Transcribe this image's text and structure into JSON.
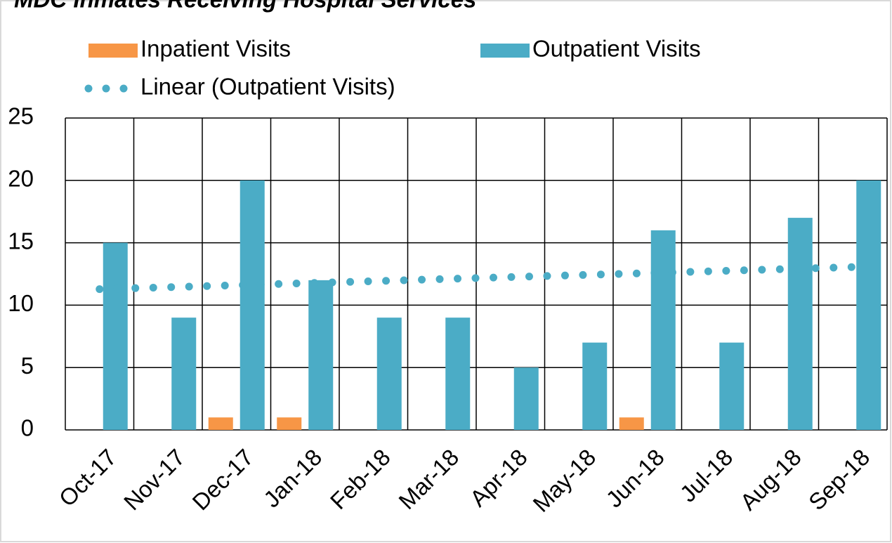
{
  "chart_data": {
    "type": "bar",
    "title": "MDC Inmates Receiving Hospital Services",
    "categories": [
      "Oct-17",
      "Nov-17",
      "Dec-17",
      "Jan-18",
      "Feb-18",
      "Mar-18",
      "Apr-18",
      "May-18",
      "Jun-18",
      "Jul-18",
      "Aug-18",
      "Sep-18"
    ],
    "series": [
      {
        "name": "Inpatient Visits",
        "color": "#f79646",
        "values": [
          0,
          0,
          1,
          1,
          0,
          0,
          0,
          0,
          1,
          0,
          0,
          0
        ]
      },
      {
        "name": "Outpatient Visits",
        "color": "#4bacc6",
        "values": [
          15,
          9,
          20,
          12,
          9,
          9,
          5,
          7,
          16,
          7,
          17,
          20
        ]
      },
      {
        "name": "Linear (Outpatient Visits)",
        "color": "#4bacc6",
        "type": "trend",
        "values": [
          11.28,
          11.44,
          11.6,
          11.76,
          11.92,
          12.09,
          12.25,
          12.41,
          12.57,
          12.73,
          12.89,
          13.05
        ]
      }
    ],
    "ylim": [
      0,
      25
    ],
    "yticks": [
      0,
      5,
      10,
      15,
      20,
      25
    ],
    "grid": true
  }
}
